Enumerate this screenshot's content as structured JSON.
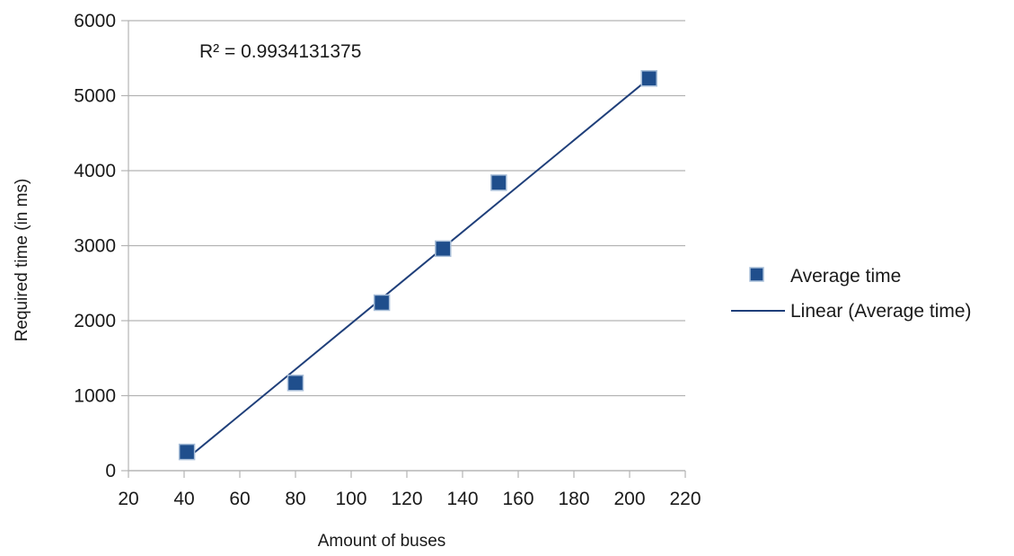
{
  "chart_data": {
    "type": "scatter",
    "title": "",
    "xlabel": "Amount of buses",
    "ylabel": "Required time (in ms)",
    "xlim": [
      20,
      220
    ],
    "ylim": [
      0,
      6000
    ],
    "xticks": [
      20,
      40,
      60,
      80,
      100,
      120,
      140,
      160,
      180,
      200,
      220
    ],
    "yticks": [
      0,
      1000,
      2000,
      3000,
      4000,
      5000,
      6000
    ],
    "grid": "horizontal",
    "legend_position": "right",
    "series": [
      {
        "name": "Average time",
        "marker": "square",
        "color": "#1f4e8c",
        "points": [
          {
            "x": 41,
            "y": 250
          },
          {
            "x": 80,
            "y": 1170
          },
          {
            "x": 111,
            "y": 2240
          },
          {
            "x": 133,
            "y": 2960
          },
          {
            "x": 153,
            "y": 3840
          },
          {
            "x": 207,
            "y": 5230
          }
        ]
      },
      {
        "name": "Linear (Average time)",
        "type": "line",
        "color": "#1f3f7a",
        "x": [
          41,
          207
        ],
        "y": [
          160,
          5230
        ]
      }
    ],
    "annotations": [
      {
        "text": "R² = 0.9934131375"
      }
    ]
  }
}
